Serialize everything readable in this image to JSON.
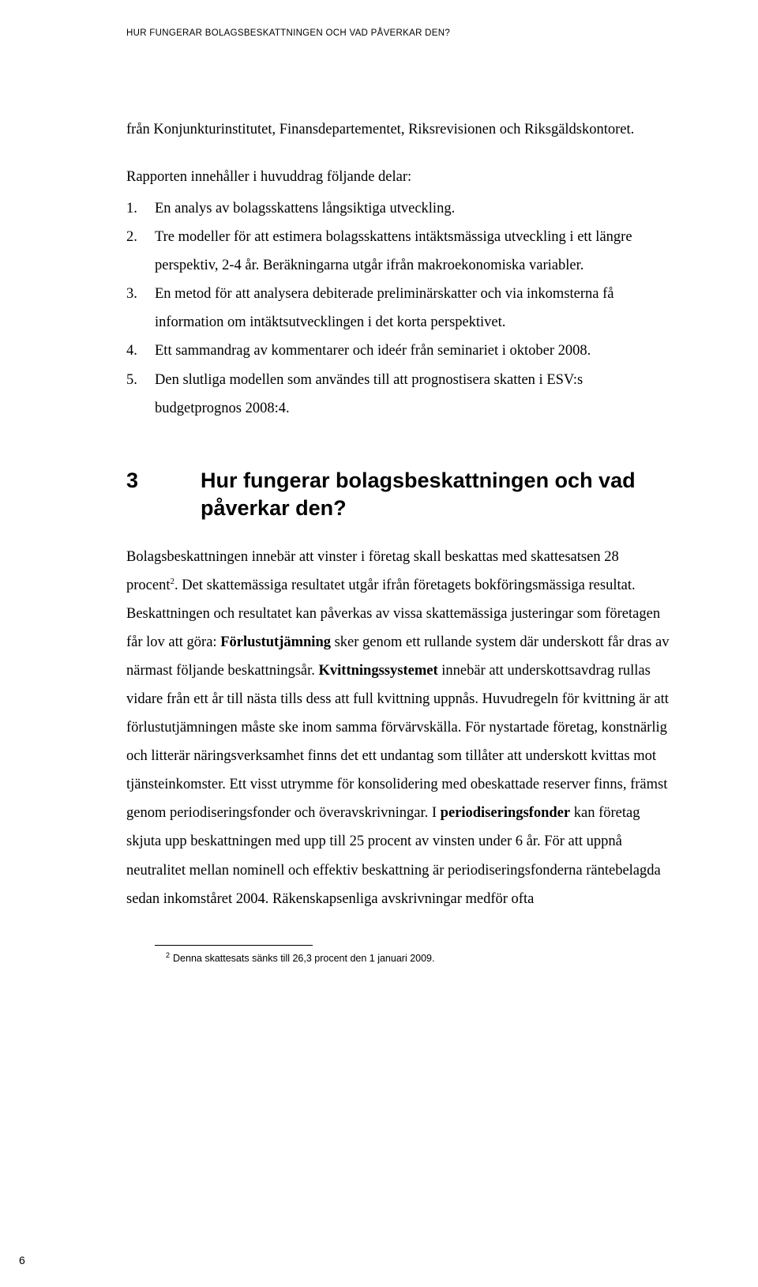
{
  "running_header": "HUR FUNGERAR BOLAGSBESKATTNINGEN OCH VAD PÅVERKAR DEN?",
  "intro_para": "från Konjunkturinstitutet, Finansdepartementet, Riksrevisionen och Riksgäldskontoret.",
  "list_intro": "Rapporten innehåller i huvuddrag följande delar:",
  "list": [
    {
      "n": "1.",
      "t": "En analys av bolagsskattens långsiktiga utveckling."
    },
    {
      "n": "2.",
      "t": "Tre modeller för att estimera bolagsskattens intäktsmässiga utveckling i ett längre perspektiv, 2-4 år. Beräkningarna utgår ifrån makroekonomiska variabler."
    },
    {
      "n": "3.",
      "t": "En metod för att analysera debiterade preliminärskatter och via inkomsterna få information om intäktsutvecklingen i det korta perspektivet."
    },
    {
      "n": "4.",
      "t": "Ett sammandrag av kommentarer och ideér från seminariet i oktober 2008."
    },
    {
      "n": "5.",
      "t": "Den slutliga modellen som användes till att prognostisera skatten i ESV:s budgetprognos 2008:4."
    }
  ],
  "section": {
    "num": "3",
    "title": "Hur fungerar bolagsbeskattningen och vad påverkar den?"
  },
  "main": {
    "seg1": "Bolagsbeskattningen innebär att vinster i företag skall beskattas med skattesatsen 28 procent",
    "sup1": "2",
    "seg2": ". Det skattemässiga resultatet utgår ifrån företagets bokföringsmässiga resultat. Beskattningen och resultatet kan påverkas av vissa skattemässiga justeringar som företagen får lov att göra: ",
    "bold1": "Förlustutjämning",
    "seg3": " sker genom ett rullande system där underskott får dras av närmast följande beskattningsår. ",
    "bold2": "Kvittningssystemet",
    "seg4": " innebär att underskottsavdrag rullas vidare från ett år till nästa tills dess att full kvittning uppnås. Huvudregeln för kvittning är att förlustutjämningen måste ske inom samma förvärvskälla. För nystartade företag, konstnärlig och litterär näringsverksamhet finns det ett undantag som tillåter att underskott kvittas mot tjänsteinkomster. Ett visst utrymme för konsolidering med obeskattade reserver finns, främst genom periodiseringsfonder och överavskrivningar. I ",
    "bold3": "periodiseringsfonder",
    "seg5": " kan företag skjuta upp beskattningen med upp till 25 procent av vinsten under 6 år. För att uppnå neutralitet mellan nominell och effektiv beskattning är periodiseringsfonderna räntebelagda sedan inkomståret 2004. Räkenskapsenliga avskrivningar medför ofta"
  },
  "footnote": {
    "marker": "2",
    "text": "Denna skattesats sänks till 26,3 procent den 1 januari 2009."
  },
  "page_number": "6"
}
